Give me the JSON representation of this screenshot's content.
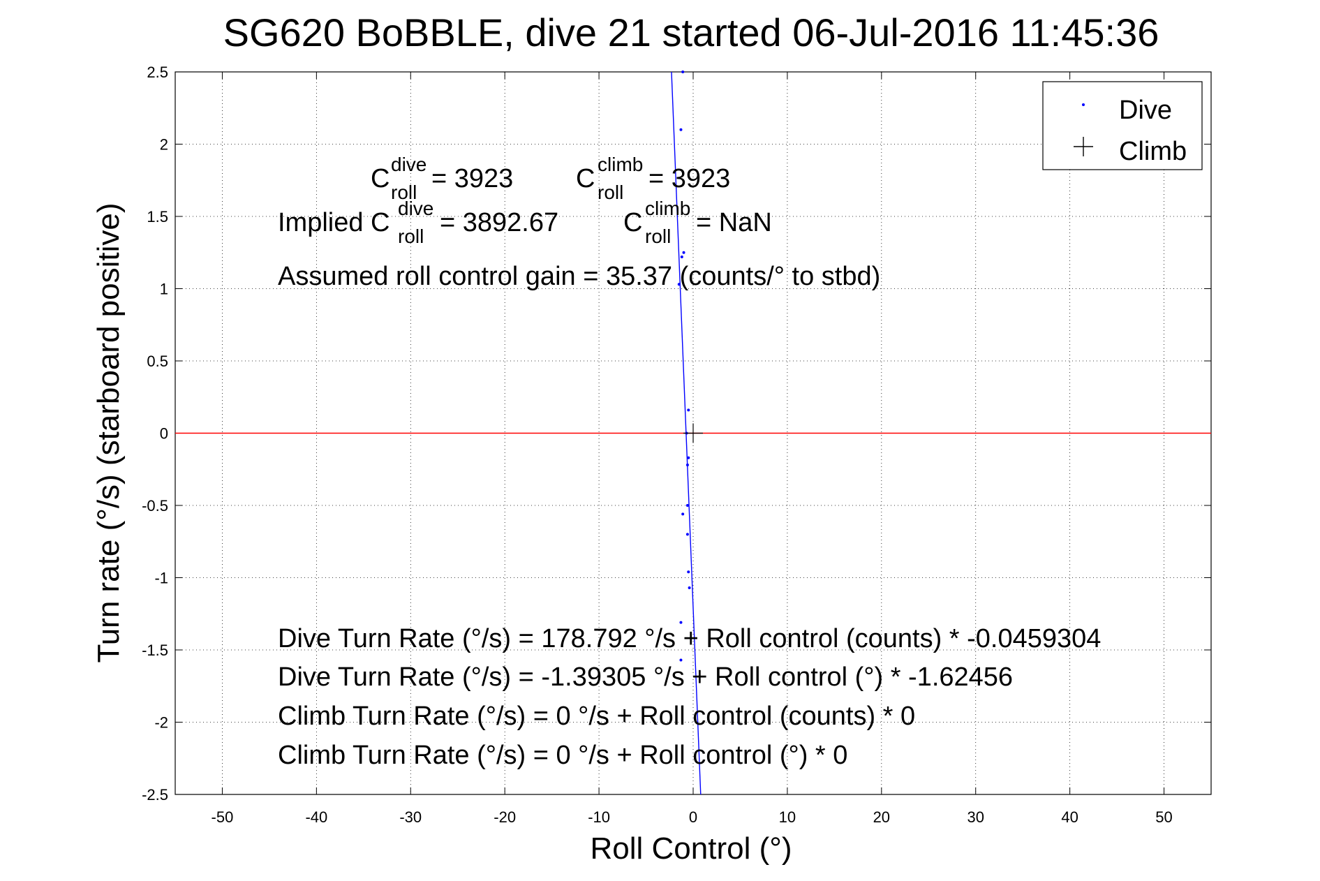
{
  "chart_data": {
    "type": "scatter",
    "title": "SG620 BoBBLE, dive 21 started 06-Jul-2016 11:45:36",
    "xlabel": "Roll Control (°)",
    "ylabel": "Turn rate (°/s) (starboard positive)",
    "xlim": [
      -55,
      55
    ],
    "ylim": [
      -2.5,
      2.5
    ],
    "xticks": [
      -50,
      -40,
      -30,
      -20,
      -10,
      0,
      10,
      20,
      30,
      40,
      50
    ],
    "yticks": [
      -2.5,
      -2,
      -1.5,
      -1,
      -0.5,
      0,
      0.5,
      1,
      1.5,
      2,
      2.5
    ],
    "xtick_labels": [
      "-50",
      "-40",
      "-30",
      "-20",
      "-10",
      "0",
      "10",
      "20",
      "30",
      "40",
      "50"
    ],
    "ytick_labels": [
      "-2.5",
      "-2",
      "-1.5",
      "-1",
      "-0.5",
      "0",
      "0.5",
      "1",
      "1.5",
      "2",
      "2.5"
    ],
    "grid": true,
    "legend_position": "top-right",
    "colors": {
      "dive": "#0000ff",
      "climb": "#000000",
      "zero_line": "#ff0000",
      "fit_line": "#0000ff"
    },
    "series": [
      {
        "name": "Dive",
        "marker": "dot",
        "points": [
          [
            -1.1,
            2.5
          ],
          [
            -1.3,
            2.1
          ],
          [
            -1.0,
            1.25
          ],
          [
            -1.2,
            1.22
          ],
          [
            -1.5,
            1.03
          ],
          [
            -0.5,
            0.16
          ],
          [
            -0.7,
            0.0
          ],
          [
            -0.5,
            -0.17
          ],
          [
            -0.6,
            -0.22
          ],
          [
            -1.1,
            -0.56
          ],
          [
            -0.6,
            -0.5
          ],
          [
            -0.6,
            -0.7
          ],
          [
            -0.5,
            -0.96
          ],
          [
            -0.4,
            -1.07
          ],
          [
            -1.3,
            -1.31
          ],
          [
            -1.3,
            -1.57
          ]
        ]
      },
      {
        "name": "Climb",
        "marker": "plus",
        "points": [
          [
            0.0,
            0.0
          ]
        ]
      }
    ],
    "fit_line": {
      "x": [
        -2.3,
        0.8
      ],
      "y": [
        2.5,
        -2.5
      ]
    },
    "zero_line_y": 0
  },
  "annotations": {
    "c_dive_base": "C",
    "c_dive_sup": "dive",
    "c_dive_sub": "roll",
    "c_dive_value": " = 3923",
    "c_climb_base": "C",
    "c_climb_sup": "climb",
    "c_climb_sub": "roll",
    "c_climb_value": " = 3923",
    "implied_prefix": "Implied C",
    "implied_sup": "dive",
    "implied_sub": "roll",
    "implied_value": " = 3892.67",
    "implied_climb_base": "C",
    "implied_climb_sup": "climb",
    "implied_climb_sub": "roll",
    "implied_climb_value": " = NaN",
    "gain": "Assumed roll control gain = 35.37 (counts/° to stbd)",
    "fit1": "Dive Turn Rate (°/s) = 178.792 °/s + Roll control (counts) * -0.0459304",
    "fit2": "Dive Turn Rate (°/s) = -1.39305 °/s + Roll control (°) * -1.62456",
    "fit3": "Climb Turn Rate (°/s) = 0 °/s + Roll control (counts) * 0",
    "fit4": "Climb Turn Rate (°/s) = 0 °/s + Roll control (°) * 0"
  }
}
